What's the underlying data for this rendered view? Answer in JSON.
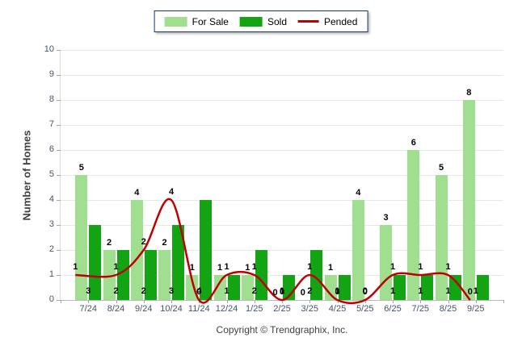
{
  "chart_data": {
    "type": "bar+line",
    "categories": [
      "7/24",
      "8/24",
      "9/24",
      "10/24",
      "11/24",
      "12/24",
      "1/25",
      "2/25",
      "3/25",
      "4/25",
      "5/25",
      "6/25",
      "7/25",
      "8/25",
      "9/25"
    ],
    "series": [
      {
        "name": "For Sale",
        "type": "bar",
        "color": "#A0DE90",
        "values": [
          5,
          2,
          4,
          2,
          1,
          1,
          1,
          0,
          0,
          1,
          4,
          3,
          6,
          5,
          8
        ]
      },
      {
        "name": "Sold",
        "type": "bar",
        "color": "#12A412",
        "values": [
          3,
          2,
          2,
          3,
          4,
          1,
          2,
          1,
          2,
          1,
          0,
          1,
          1,
          1,
          1
        ]
      },
      {
        "name": "Pended",
        "type": "line",
        "color": "#C00000",
        "values": [
          1,
          1,
          2,
          4,
          0,
          1,
          1,
          0,
          1,
          0,
          0,
          1,
          1,
          1,
          0
        ]
      }
    ],
    "title": "",
    "xlabel": "",
    "ylabel": "Number of Homes",
    "ylim": [
      0,
      10
    ],
    "ytick_step": 1,
    "grid": true,
    "data_labels": true,
    "legend_position": "top-center",
    "line_style": "smooth-spline"
  },
  "footer": {
    "copyright": "Copyright © Trendgraphix, Inc."
  },
  "colors": {
    "for_sale": "#A0DE90",
    "sold": "#12A412",
    "pended": "#C00000",
    "legend_border": "#17375E",
    "tick_label": "#44546A",
    "axis_title": "#3F3F3F"
  }
}
